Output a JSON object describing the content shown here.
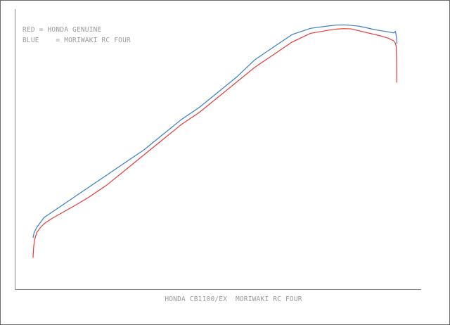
{
  "chart_data": {
    "type": "line",
    "title": "",
    "xlabel": "HONDA CB1100/EX  MORIWAKI RC FOUR",
    "ylabel": "",
    "legend": {
      "placement": "top-left",
      "entries": [
        "RED = HONDA GENUINE",
        "BLUE    = MORIWAKI RC FOUR"
      ]
    },
    "grid": false,
    "xlim": [
      0,
      100
    ],
    "ylim": [
      0,
      100
    ],
    "series": [
      {
        "color": "#3b7cc4",
        "x": [
          0,
          0.3,
          1,
          2,
          3,
          5,
          8,
          11,
          15,
          20,
          25,
          30,
          35,
          40,
          45,
          50,
          55,
          60,
          65,
          70,
          75,
          80,
          82,
          84,
          86,
          88,
          90,
          92,
          94,
          96,
          97.5,
          98,
          98.2,
          98.4
        ],
        "y": [
          15,
          17,
          19,
          21,
          23,
          25,
          28,
          31,
          35,
          40,
          45,
          50,
          56,
          62,
          67,
          73,
          79,
          86,
          91,
          96,
          98.5,
          99.5,
          99.8,
          99.9,
          99.7,
          99.4,
          98.8,
          98.1,
          97.6,
          97.1,
          96.7,
          97.3,
          95.5,
          92.5
        ]
      },
      {
        "color": "#e53a3a",
        "x": [
          0,
          0.15,
          0.4,
          1,
          2,
          3,
          5,
          8,
          11,
          15,
          20,
          25,
          30,
          35,
          40,
          45,
          50,
          55,
          60,
          65,
          70,
          75,
          80,
          82,
          84,
          86,
          88,
          90,
          92,
          94,
          96,
          97.5,
          98,
          98.2,
          98.3,
          98.35
        ],
        "y": [
          7,
          11,
          14,
          17,
          19,
          20.5,
          22.5,
          25,
          27.5,
          31,
          36,
          42,
          48,
          54,
          60,
          65,
          71,
          77,
          83,
          88,
          93,
          96.5,
          97.8,
          98.2,
          98.4,
          98.3,
          97.6,
          96.9,
          96.2,
          95.5,
          94.6,
          93.5,
          92.5,
          91.2,
          86,
          77
        ]
      }
    ]
  }
}
